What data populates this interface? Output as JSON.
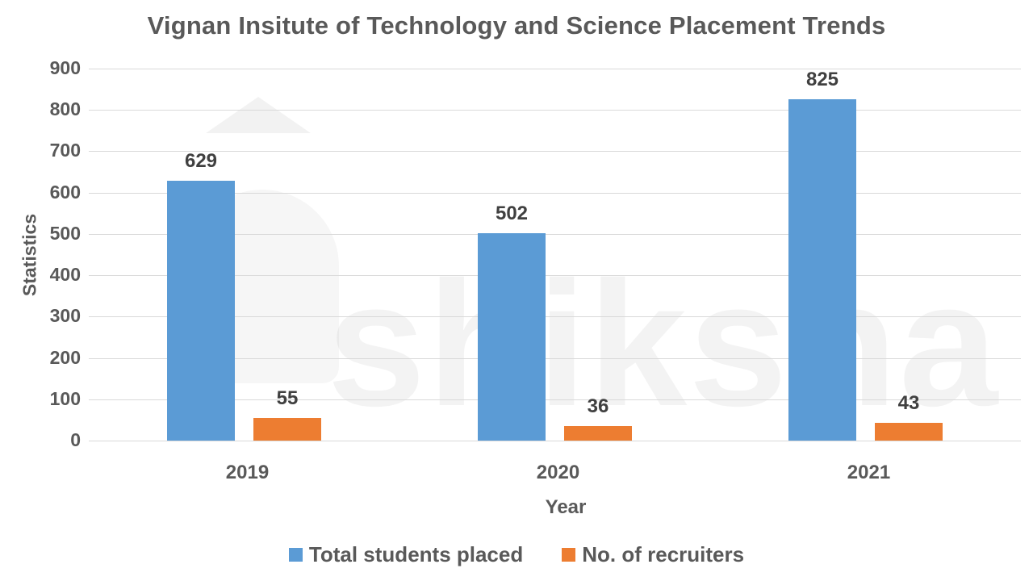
{
  "chart_data": {
    "type": "bar",
    "title": "Vignan Insitute of Technology and Science Placement Trends",
    "xlabel": "Year",
    "ylabel": "Statistics",
    "categories": [
      "2019",
      "2020",
      "2021"
    ],
    "series": [
      {
        "name": "Total students placed",
        "color": "#5b9bd5",
        "values": [
          629,
          502,
          825
        ]
      },
      {
        "name": "No. of recruiters",
        "color": "#ed7d31",
        "values": [
          55,
          36,
          43
        ]
      }
    ],
    "ylim": [
      0,
      900
    ],
    "yticks": [
      "900",
      "800",
      "700",
      "600",
      "500",
      "400",
      "300",
      "200",
      "100",
      "0"
    ],
    "grid": true,
    "legend_position": "bottom",
    "data_labels": true,
    "watermark": "shiksha"
  }
}
